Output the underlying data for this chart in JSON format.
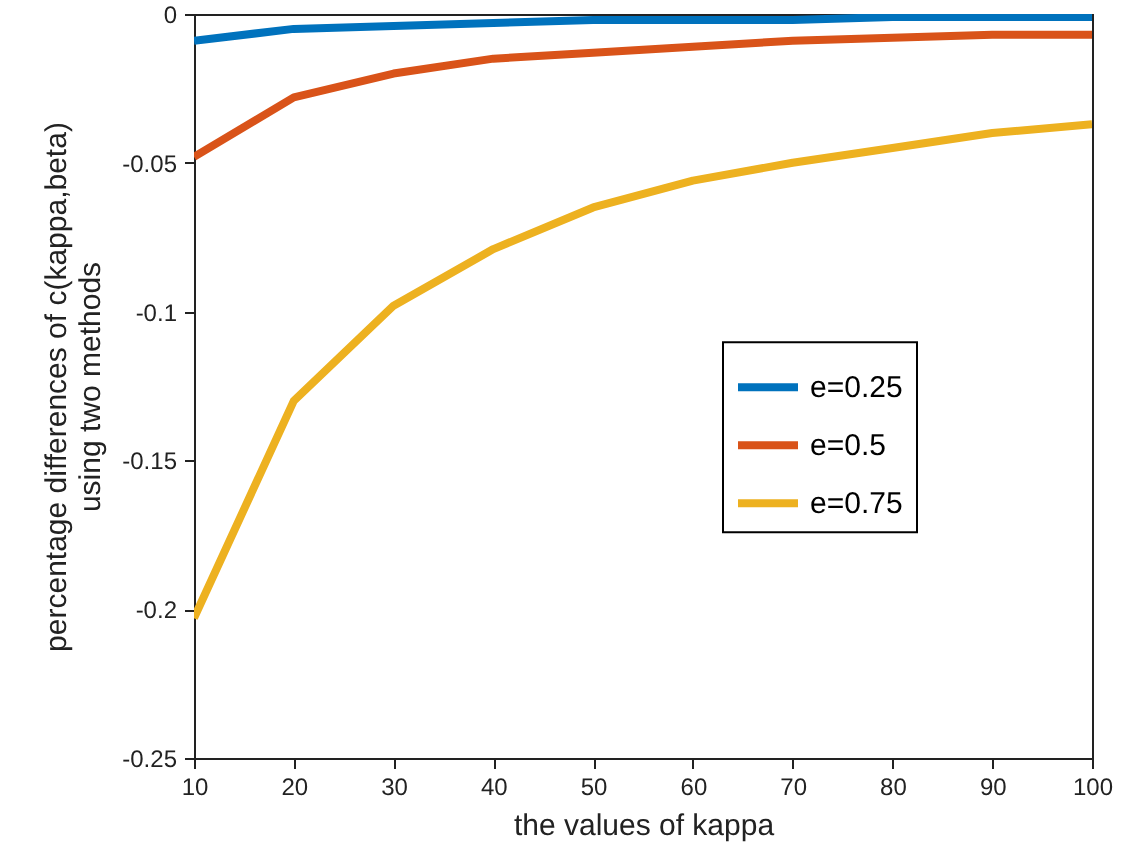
{
  "chart_data": {
    "type": "line",
    "xlabel": "the values of kappa",
    "ylabel": "percentage differences of c(kappa,beta)\nusing two methods",
    "x": [
      10,
      20,
      30,
      40,
      50,
      60,
      70,
      80,
      90,
      100
    ],
    "series": [
      {
        "name": "e=0.25",
        "color": "#0072bd",
        "values": [
          -0.009,
          -0.005,
          -0.004,
          -0.003,
          -0.002,
          -0.002,
          -0.002,
          -0.001,
          -0.001,
          -0.001
        ]
      },
      {
        "name": "e=0.5",
        "color": "#d95319",
        "values": [
          -0.048,
          -0.028,
          -0.02,
          -0.015,
          -0.013,
          -0.011,
          -0.009,
          -0.008,
          -0.007,
          -0.007
        ]
      },
      {
        "name": "e=0.75",
        "color": "#edb120",
        "values": [
          -0.203,
          -0.13,
          -0.098,
          -0.079,
          -0.065,
          -0.056,
          -0.05,
          -0.045,
          -0.04,
          -0.037
        ]
      }
    ],
    "xlim": [
      10,
      100
    ],
    "xticks": [
      10,
      20,
      30,
      40,
      50,
      60,
      70,
      80,
      90,
      100
    ],
    "ylim": [
      -0.25,
      0
    ],
    "yticks": [
      -0.25,
      -0.2,
      -0.15,
      -0.1,
      -0.05,
      0
    ],
    "grid": false,
    "legend": "right",
    "marker": "none",
    "line_style": "solid"
  }
}
